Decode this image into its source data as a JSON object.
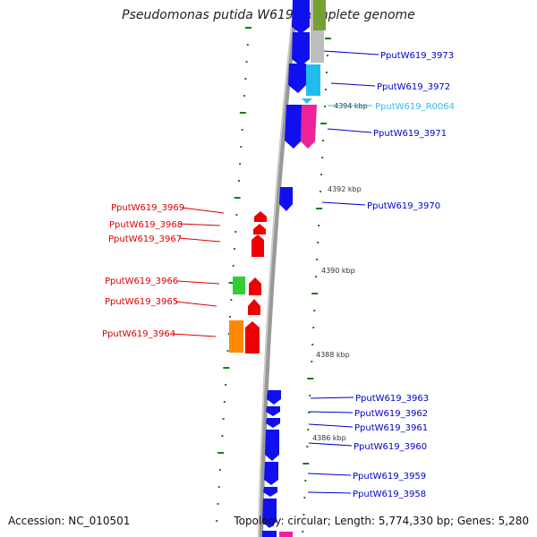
{
  "title": "Pseudomonas putida W619, complete genome",
  "accession": "Accession: NC_010501",
  "topology": "Topology: circular; Length: 5,774,330 bp; Genes: 5,280",
  "colors": {
    "forward_label": "#0000cc",
    "reverse_label": "#dd0000",
    "rna_label": "#33bbee",
    "backbone": "#888888",
    "tick": "#1a7a1a"
  },
  "kbp_markers": [
    "4394 kbp",
    "4392 kbp",
    "4390 kbp",
    "4388 kbp",
    "4386 kbp"
  ],
  "right_labels": [
    {
      "id": "PputW619_3973",
      "color": "#0000cc"
    },
    {
      "id": "PputW619_3972",
      "color": "#0000cc"
    },
    {
      "id": "PputW619_R0064",
      "color": "#33bbee"
    },
    {
      "id": "PputW619_3971",
      "color": "#0000cc"
    },
    {
      "id": "PputW619_3970",
      "color": "#0000cc"
    },
    {
      "id": "PputW619_3963",
      "color": "#0000cc"
    },
    {
      "id": "PputW619_3962",
      "color": "#0000cc"
    },
    {
      "id": "PputW619_3961",
      "color": "#0000cc"
    },
    {
      "id": "PputW619_3960",
      "color": "#0000cc"
    },
    {
      "id": "PputW619_3959",
      "color": "#0000cc"
    },
    {
      "id": "PputW619_3958",
      "color": "#0000cc"
    }
  ],
  "left_labels": [
    {
      "id": "PputW619_3969",
      "color": "#dd0000"
    },
    {
      "id": "PputW619_3968",
      "color": "#dd0000"
    },
    {
      "id": "PputW619_3967",
      "color": "#dd0000"
    },
    {
      "id": "PputW619_3966",
      "color": "#dd0000"
    },
    {
      "id": "PputW619_3965",
      "color": "#dd0000"
    },
    {
      "id": "PputW619_3964",
      "color": "#dd0000"
    }
  ]
}
